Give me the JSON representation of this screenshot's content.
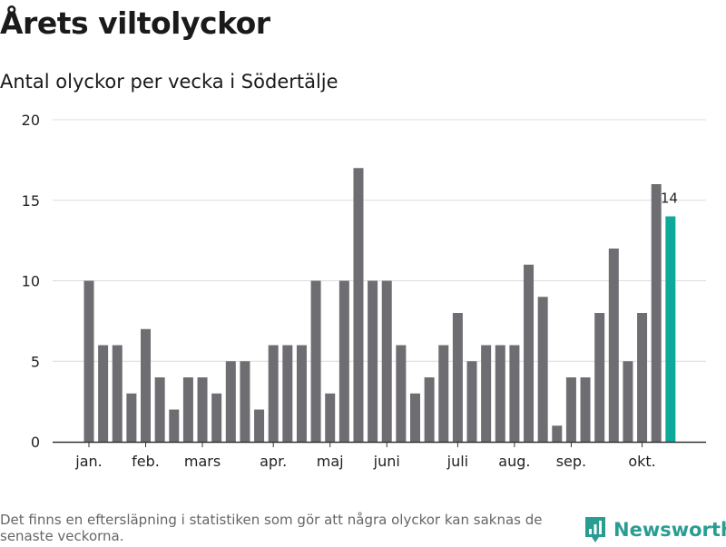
{
  "title": "Årets viltolyckor",
  "subtitle": "Antal olyckor per vecka i Södertälje",
  "footnote": "Det finns en eftersläpning i statistiken som gör att några olyckor kan saknas de senaste veckorna.",
  "brand": {
    "name": "Newsworthy",
    "icon": "newsworthy-logo-icon"
  },
  "colors": {
    "bar": "#6e6d72",
    "highlight": "#0fa99c",
    "grid": "#dcdcdc",
    "axis": "#333333",
    "brand_text": "#2a9d92"
  },
  "chart_data": {
    "type": "bar",
    "title": "Årets viltolyckor",
    "subtitle": "Antal olyckor per vecka i Södertälje",
    "xlabel": "",
    "ylabel": "",
    "ylim": [
      0,
      20
    ],
    "yticks": [
      0,
      5,
      10,
      15,
      20
    ],
    "grid": true,
    "x": [
      1,
      2,
      3,
      4,
      5,
      6,
      7,
      8,
      9,
      10,
      11,
      12,
      13,
      14,
      15,
      16,
      17,
      18,
      19,
      20,
      21,
      22,
      23,
      24,
      25,
      26,
      27,
      28,
      29,
      30,
      31,
      32,
      33,
      34,
      35,
      36,
      37,
      38,
      39,
      40,
      41,
      42
    ],
    "values": [
      10,
      6,
      6,
      3,
      7,
      4,
      2,
      4,
      4,
      3,
      5,
      5,
      2,
      6,
      6,
      6,
      10,
      3,
      10,
      17,
      10,
      10,
      6,
      3,
      4,
      6,
      8,
      5,
      6,
      6,
      6,
      11,
      9,
      1,
      4,
      4,
      8,
      12,
      5,
      8,
      16,
      14
    ],
    "highlight_index": 41,
    "highlight_label": "14",
    "month_labels": [
      {
        "label": "jan.",
        "week": 1
      },
      {
        "label": "feb.",
        "week": 5
      },
      {
        "label": "mars",
        "week": 9
      },
      {
        "label": "apr.",
        "week": 14
      },
      {
        "label": "maj",
        "week": 18
      },
      {
        "label": "juni",
        "week": 22
      },
      {
        "label": "juli",
        "week": 27
      },
      {
        "label": "aug.",
        "week": 31
      },
      {
        "label": "sep.",
        "week": 35
      },
      {
        "label": "okt.",
        "week": 40
      }
    ]
  }
}
